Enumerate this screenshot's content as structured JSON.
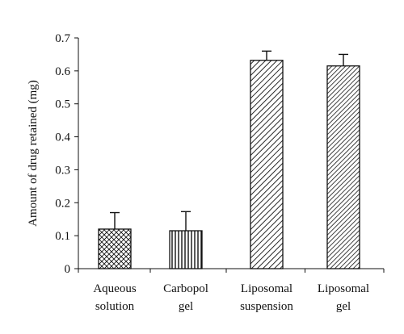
{
  "chart_data": {
    "type": "bar",
    "title": "",
    "xlabel": "",
    "ylabel": "Amount of drug retained (mg)",
    "ylim": [
      0,
      0.7
    ],
    "yticks": [
      "0",
      "0.1",
      "0.2",
      "0.3",
      "0.4",
      "0.5",
      "0.6",
      "0.7"
    ],
    "grid": false,
    "categories": [
      [
        "Aqueous",
        "solution"
      ],
      [
        "Carbopol",
        "gel"
      ],
      [
        "Liposomal",
        "suspension"
      ],
      [
        "Liposomal",
        "gel"
      ]
    ],
    "values": [
      0.12,
      0.115,
      0.632,
      0.615
    ],
    "error_upper": [
      0.05,
      0.058,
      0.028,
      0.035
    ],
    "bar_patterns": [
      "crosshatch",
      "vertical-lines",
      "diagonal-lines",
      "diagonal-lines-dense"
    ],
    "colors": {
      "axis": "#111111",
      "bar_fill": "#ffffff",
      "bar_stroke": "#111111"
    }
  }
}
